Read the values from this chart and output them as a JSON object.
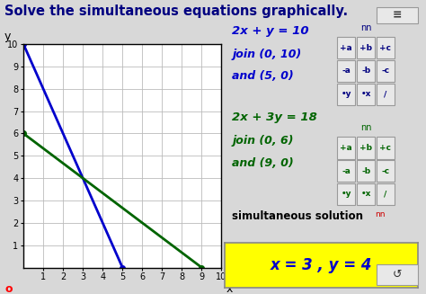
{
  "title": "Solve the simultaneous equations graphically.",
  "title_color": "#000080",
  "title_fontsize": 10.5,
  "bg_color": "#d8d8d8",
  "graph_bg": "#ffffff",
  "xlim": [
    0,
    10
  ],
  "ylim": [
    0,
    10
  ],
  "xticks": [
    1,
    2,
    3,
    4,
    5,
    6,
    7,
    8,
    9,
    10
  ],
  "yticks": [
    1,
    2,
    3,
    4,
    5,
    6,
    7,
    8,
    9,
    10
  ],
  "line1": {
    "x": [
      0,
      5
    ],
    "y": [
      10,
      0
    ],
    "color": "#0000cc",
    "eq_text": "2x + y = 10",
    "join_text": "join (0, 10)",
    "and_text": "and (5, 0)"
  },
  "line2": {
    "x": [
      0,
      9
    ],
    "y": [
      6,
      0
    ],
    "color": "#006400",
    "eq_text": "2x + 3y = 18",
    "join_text": "join (0, 6)",
    "and_text": "and (9, 0)"
  },
  "solution_text": "simultaneous solution",
  "solution_box_text": "x = 3 , y = 4",
  "solution_box_color": "#ffff00",
  "xlabel": "x",
  "ylabel": "y",
  "origin_label": "o",
  "axis_label_color": "#ff0000",
  "nn1_color": "#000080",
  "nn2_color": "#006400",
  "btn_bg": "#e8e8e8",
  "btn_border": "#aaaaaa",
  "btn1_text_color": "#000080",
  "btn2_text_color": "#006400",
  "btn_labels_row1": [
    "+a",
    "+b",
    "+c"
  ],
  "btn_labels_row2": [
    "-a",
    "-b",
    "-c"
  ],
  "btn_labels_row3": [
    "•y",
    "•x",
    "/"
  ],
  "eq_sign_btn": "≡",
  "nn_label": "nn",
  "reset_btn": "↺"
}
